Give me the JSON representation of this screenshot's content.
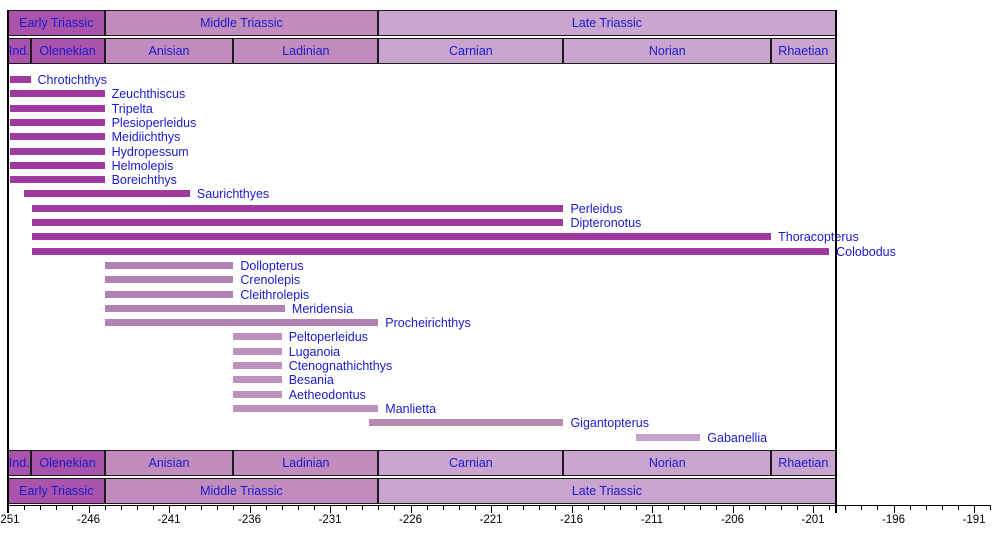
{
  "chart_data": {
    "type": "bar",
    "subtype": "taxon-stratigraphic-range-chart",
    "title": "",
    "xlabel": "",
    "ylabel": "",
    "xlim": [
      -251,
      -190
    ],
    "minor_tick_step_myr": 1,
    "axis_tick_labels": [
      -251,
      -246,
      -241,
      -236,
      -231,
      -226,
      -221,
      -216,
      -211,
      -206,
      -201,
      -196,
      -191
    ],
    "label_color": "#1a1acc",
    "axis_color": "#000000",
    "periods": [
      {
        "label": "Early Triassic",
        "start": -251,
        "end": -245,
        "color": "#a953ab"
      },
      {
        "label": "Middle Triassic",
        "start": -245,
        "end": -228,
        "color": "#c38cbe"
      },
      {
        "label": "Late Triassic",
        "start": -228,
        "end": -199.6,
        "color": "#c9a5cf"
      }
    ],
    "stages": [
      {
        "label": "Ind.",
        "start": -251,
        "end": -249.6,
        "color": "#a953ab"
      },
      {
        "label": "Olenekian",
        "start": -249.6,
        "end": -245,
        "color": "#a953ab"
      },
      {
        "label": "Anisian",
        "start": -245,
        "end": -237,
        "color": "#c38cbe"
      },
      {
        "label": "Ladinian",
        "start": -237,
        "end": -228,
        "color": "#c38cbe"
      },
      {
        "label": "Carnian",
        "start": -228,
        "end": -216.5,
        "color": "#c9a5cf"
      },
      {
        "label": "Norian",
        "start": -216.5,
        "end": -203.6,
        "color": "#c9a5cf"
      },
      {
        "label": "Rhaetian",
        "start": -203.6,
        "end": -199.6,
        "color": "#c9a5cf"
      }
    ],
    "taxa": [
      {
        "name": "Chrotichthys",
        "start": -250.9,
        "end": -249.6,
        "color": "#9e3a9e"
      },
      {
        "name": "Zeuchthiscus",
        "start": -250.9,
        "end": -245,
        "color": "#9e3a9e"
      },
      {
        "name": "Tripelta",
        "start": -250.9,
        "end": -245,
        "color": "#9e3a9e"
      },
      {
        "name": "Plesioperleidus",
        "start": -250.9,
        "end": -245,
        "color": "#9e3a9e"
      },
      {
        "name": "Meidiichthys",
        "start": -250.9,
        "end": -245,
        "color": "#9e3a9e"
      },
      {
        "name": "Hydropessum",
        "start": -250.9,
        "end": -245,
        "color": "#9e3a9e"
      },
      {
        "name": "Helmolepis",
        "start": -250.9,
        "end": -245,
        "color": "#9e3a9e"
      },
      {
        "name": "Boreichthys",
        "start": -250.9,
        "end": -245,
        "color": "#9e3a9e"
      },
      {
        "name": "Saurichthyes",
        "start": -250,
        "end": -239.7,
        "color": "#9e3a9e"
      },
      {
        "name": "Perleidus",
        "start": -249.5,
        "end": -216.5,
        "color": "#9e3a9e"
      },
      {
        "name": "Dipteronotus",
        "start": -249.5,
        "end": -216.5,
        "color": "#9e3a9e"
      },
      {
        "name": "Thoracopterus",
        "start": -249.5,
        "end": -203.6,
        "color": "#9e3a9e"
      },
      {
        "name": "Colobodus",
        "start": -249.5,
        "end": -200,
        "color": "#9e3a9e"
      },
      {
        "name": "Dollopterus",
        "start": -245,
        "end": -237,
        "color": "#b283b2"
      },
      {
        "name": "Crenolepis",
        "start": -245,
        "end": -237,
        "color": "#b283b2"
      },
      {
        "name": "Cleithrolepis",
        "start": -245,
        "end": -237,
        "color": "#b283b2"
      },
      {
        "name": "Meridensia",
        "start": -245,
        "end": -233.8,
        "color": "#b283b2"
      },
      {
        "name": "Procheirichthys",
        "start": -245,
        "end": -228,
        "color": "#b283b2"
      },
      {
        "name": "Peltoperleidus",
        "start": -237,
        "end": -234,
        "color": "#bf92bc"
      },
      {
        "name": "Luganoia",
        "start": -237,
        "end": -234,
        "color": "#bf92bc"
      },
      {
        "name": "Ctenognathichthys",
        "start": -237,
        "end": -234,
        "color": "#bf92bc"
      },
      {
        "name": "Besania",
        "start": -237,
        "end": -234,
        "color": "#bf92bc"
      },
      {
        "name": "Aetheodontus",
        "start": -237,
        "end": -234,
        "color": "#bf92bc"
      },
      {
        "name": "Manlietta",
        "start": -237,
        "end": -228,
        "color": "#bf92bc"
      },
      {
        "name": "Gigantopterus",
        "start": -228.6,
        "end": -216.5,
        "color": "#b78ab4"
      },
      {
        "name": "Gabanellia",
        "start": -212,
        "end": -208,
        "color": "#c2a4c8"
      }
    ]
  }
}
